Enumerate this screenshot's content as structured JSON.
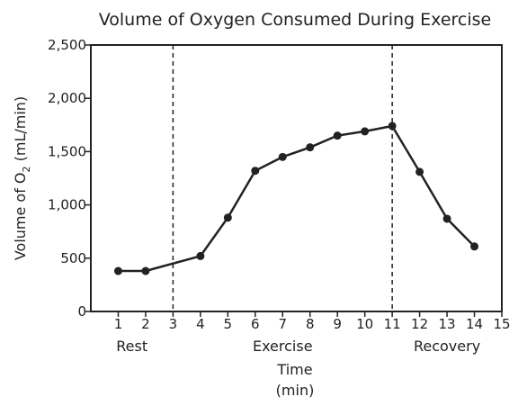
{
  "chart_data": {
    "type": "line",
    "title": "Volume of Oxygen Consumed During Exercise",
    "ylabel": {
      "prefix": "Volume of O",
      "subscript": "2",
      "suffix": " (mL/min)"
    },
    "xlabel": [
      "Time",
      "(min)"
    ],
    "xlim": [
      0,
      15
    ],
    "ylim": [
      0,
      2500
    ],
    "x_ticks": [
      "1",
      "2",
      "3",
      "4",
      "5",
      "6",
      "7",
      "8",
      "9",
      "10",
      "11",
      "12",
      "13",
      "14",
      "15"
    ],
    "y_ticks": [
      "0",
      "500",
      "1,000",
      "1,500",
      "2,000",
      "2,500"
    ],
    "grid": false,
    "legend": "none",
    "x": [
      1,
      2,
      4,
      5,
      6,
      7,
      8,
      9,
      10,
      11,
      12,
      13,
      14
    ],
    "values": [
      380,
      380,
      520,
      880,
      1320,
      1450,
      1540,
      1650,
      1690,
      1740,
      1310,
      870,
      610
    ],
    "dividers": [
      3,
      11
    ],
    "phases": [
      {
        "label": "Rest",
        "x": 1.5
      },
      {
        "label": "Exercise",
        "x": 7
      },
      {
        "label": "Recovery",
        "x": 13
      }
    ],
    "colors": {
      "line": "#222222",
      "axis": "#222222",
      "background": "#ffffff"
    }
  }
}
